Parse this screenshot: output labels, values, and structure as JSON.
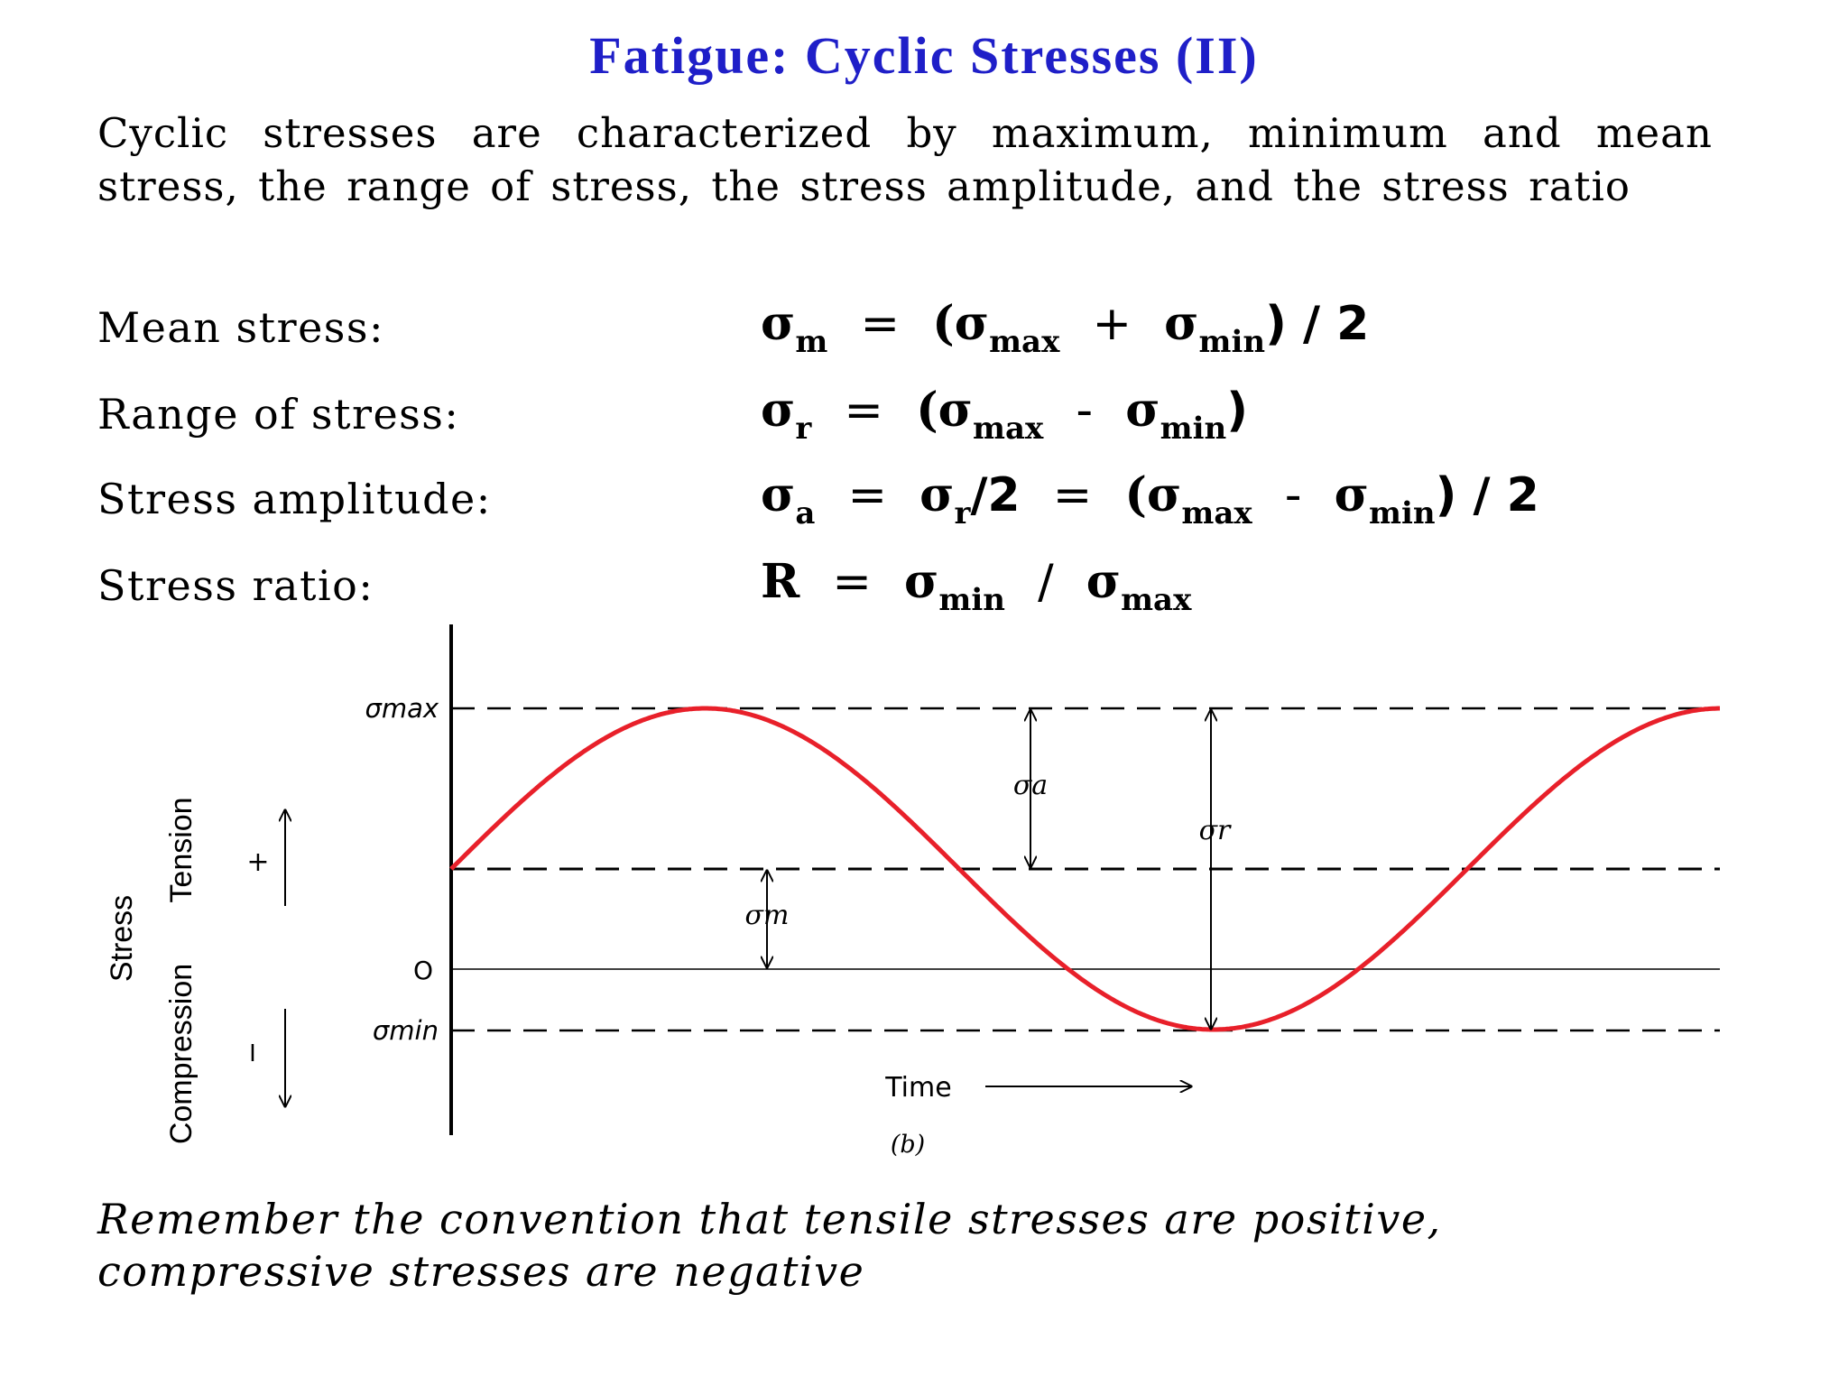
{
  "title": "Fatigue: Cyclic Stresses (II)",
  "intro": "Cyclic stresses are characterized by maximum, minimum and mean stress, the range of stress, the stress amplitude, and the stress ratio",
  "definitions": [
    {
      "label": "Mean stress:",
      "lhs": "σ",
      "lhs_sub": "m",
      "eq": "=",
      "rhs": "(σ",
      "rhs_sub1": "max",
      "op": "+",
      "rhs2": "σ",
      "rhs_sub2": "min",
      "tail": ") / 2"
    },
    {
      "label": "Range of stress:",
      "lhs": "σ",
      "lhs_sub": "r",
      "eq": "=",
      "rhs": "(σ",
      "rhs_sub1": "max",
      "op": "-",
      "rhs2": "σ",
      "rhs_sub2": "min",
      "tail": ")"
    },
    {
      "label": "Stress amplitude:",
      "lhs": "σ",
      "lhs_sub": "a",
      "eq": "=",
      "mid": "σ",
      "mid_sub": "r",
      "mid_tail": "/2",
      "eq2": "=",
      "rhs": "(σ",
      "rhs_sub1": "max",
      "op": "-",
      "rhs2": "σ",
      "rhs_sub2": "min",
      "tail": ") / 2"
    },
    {
      "label": "Stress ratio:",
      "lhs": "R",
      "eq": "=",
      "rhs": "σ",
      "rhs_sub1": "min",
      "op": "/",
      "rhs2": "σ",
      "rhs_sub2": "max"
    }
  ],
  "diagram": {
    "sigma_max": "σmax",
    "sigma_min": "σmin",
    "zero": "O",
    "sigma_a": "σa",
    "sigma_r": "σr",
    "sigma_m": "σm",
    "time": "Time",
    "stress": "Stress",
    "tension": "Tension",
    "compression": "Compression",
    "plus": "+",
    "minus": "I",
    "caption": "(b)",
    "curve_color": "#e8202a"
  },
  "note": "Remember the convention that tensile stresses are positive, compressive stresses are negative"
}
